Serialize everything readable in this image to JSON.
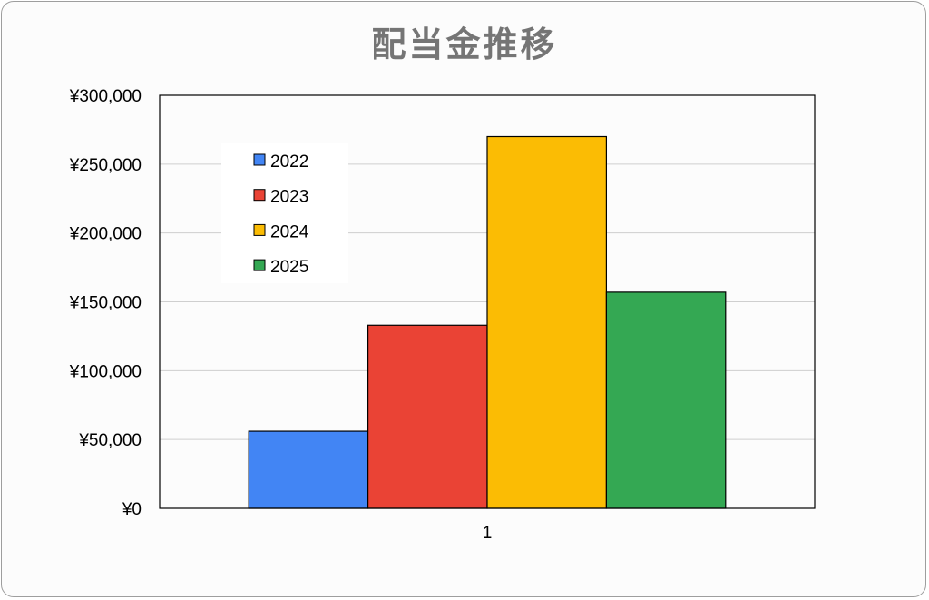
{
  "chart_data": {
    "type": "bar",
    "title": "配当金推移",
    "categories": [
      "1"
    ],
    "series": [
      {
        "name": "2022",
        "values": [
          56000
        ],
        "color": "#4285f4"
      },
      {
        "name": "2023",
        "values": [
          133000
        ],
        "color": "#ea4335"
      },
      {
        "name": "2024",
        "values": [
          270000
        ],
        "color": "#fbbc04"
      },
      {
        "name": "2025",
        "values": [
          157000
        ],
        "color": "#34a853"
      }
    ],
    "ylim": [
      0,
      300000
    ],
    "yticks": [
      "¥0",
      "¥50,000",
      "¥100,000",
      "¥150,000",
      "¥200,000",
      "¥250,000",
      "¥300,000"
    ],
    "xlabel": "",
    "ylabel": "",
    "grid": true,
    "legend_position": "top-left inside plot"
  }
}
